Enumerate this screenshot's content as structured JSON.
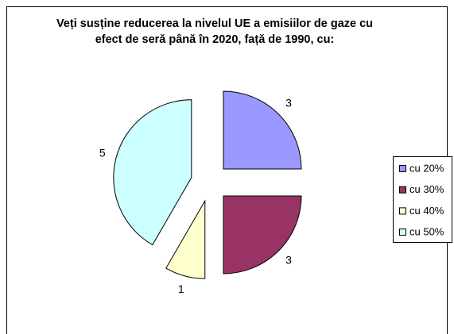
{
  "chart_data": {
    "type": "pie",
    "title": "Veți susține reducerea la nivelul UE a emisiilor de gaze cu efect de seră până în 2020, față de 1990, cu:",
    "categories": [
      "cu 20%",
      "cu 30%",
      "cu 40%",
      "cu 50%"
    ],
    "values": [
      3,
      3,
      1,
      5
    ],
    "colors": [
      "#9999ff",
      "#993366",
      "#ffffcc",
      "#ccffff"
    ],
    "legend": "right",
    "exploded": true
  }
}
